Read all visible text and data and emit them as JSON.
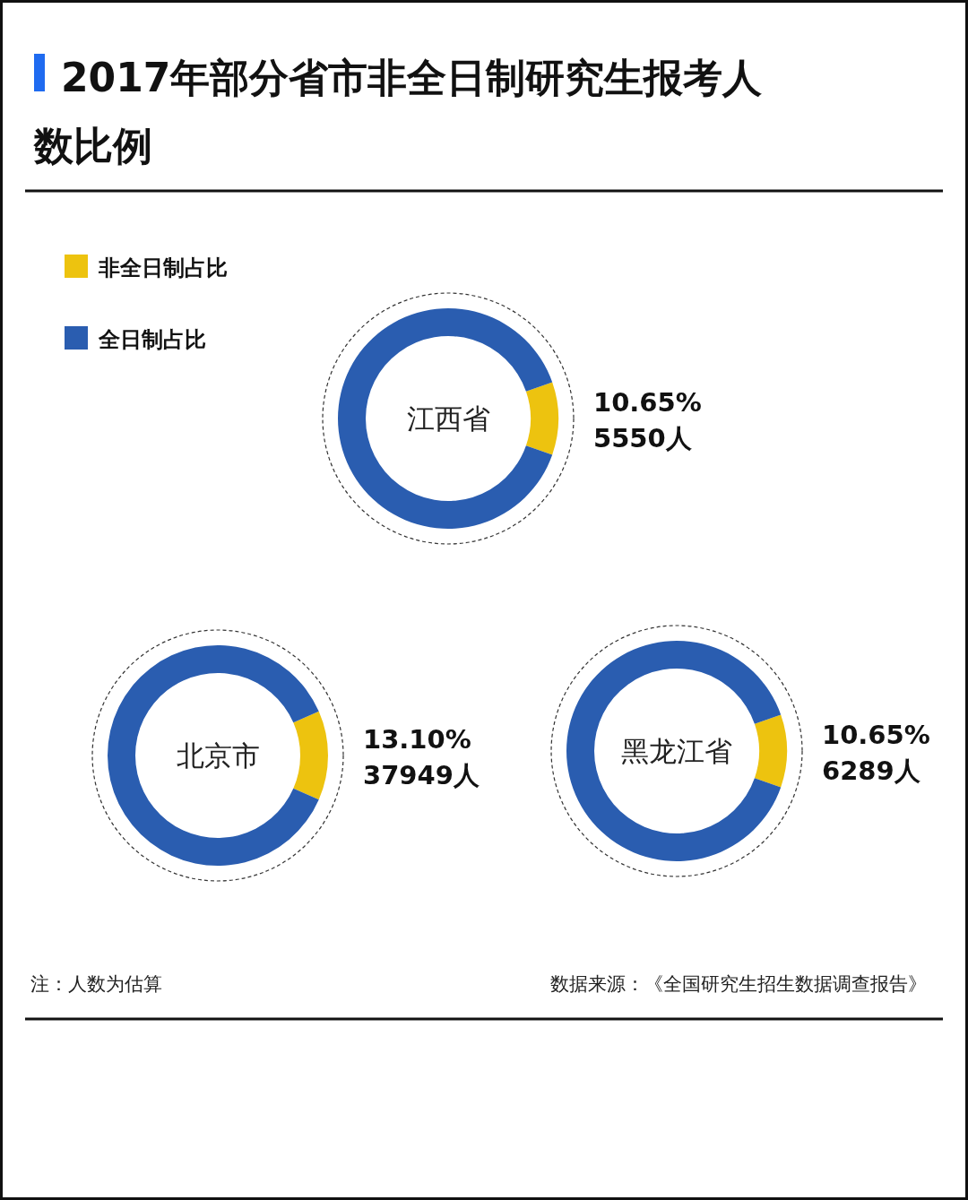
{
  "chart_data": [
    {
      "type": "other",
      "title": "2017年部分省市非全日制研究生报考人数比例",
      "annotations": [
        "注：人数为估算",
        "数据来源：《全国研究生招生数据调查报告》"
      ]
    },
    {
      "type": "donut",
      "title": "江西省",
      "categories": [
        "非全日制占比",
        "全日制占比"
      ],
      "values": [
        10.65,
        89.35
      ],
      "colors": [
        "#edc30f",
        "#2a5db0"
      ],
      "value_labels": [
        "10.65%",
        null
      ],
      "annotations": [
        "5550人"
      ],
      "legend": "top left"
    },
    {
      "type": "donut",
      "title": "北京市",
      "categories": [
        null,
        null
      ],
      "values": [
        13.1,
        86.9
      ],
      "colors": [
        "#edc30f",
        "#2a5db0"
      ],
      "value_labels": [
        "13.10%",
        null
      ],
      "annotations": [
        "37949人"
      ]
    },
    {
      "type": "donut",
      "title": "黑龙江省",
      "categories": [
        null,
        null
      ],
      "values": [
        10.65,
        89.35
      ],
      "colors": [
        "#edc30f",
        "#2a5db0"
      ],
      "value_labels": [
        "10.65%",
        null
      ],
      "annotations": [
        "6289人"
      ]
    }
  ]
}
